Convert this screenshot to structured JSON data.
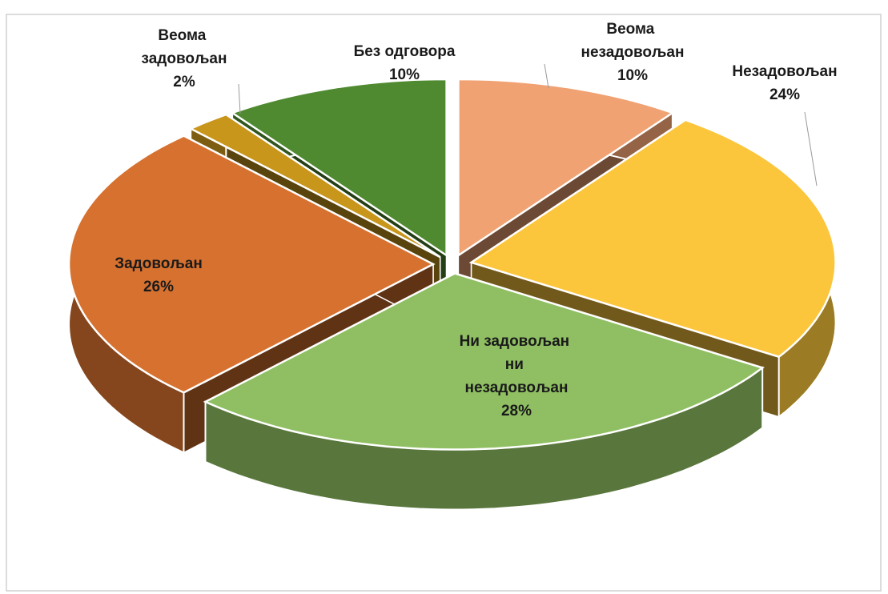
{
  "chart_data": {
    "type": "pie3d",
    "categories": [
      "Веома незадовољан",
      "Незадовољан",
      "Ни задовољан ни незадовољан",
      "Задовољан",
      "Веома задовољан",
      "Без одговора"
    ],
    "values": [
      10,
      24,
      28,
      26,
      2,
      10
    ],
    "value_labels": [
      "10%",
      "24%",
      "28%",
      "26%",
      "2%",
      "10%"
    ],
    "colors": [
      "#f0a273",
      "#fcc63c",
      "#8fbf62",
      "#d7712f",
      "#c9961c",
      "#4f8a31"
    ]
  }
}
